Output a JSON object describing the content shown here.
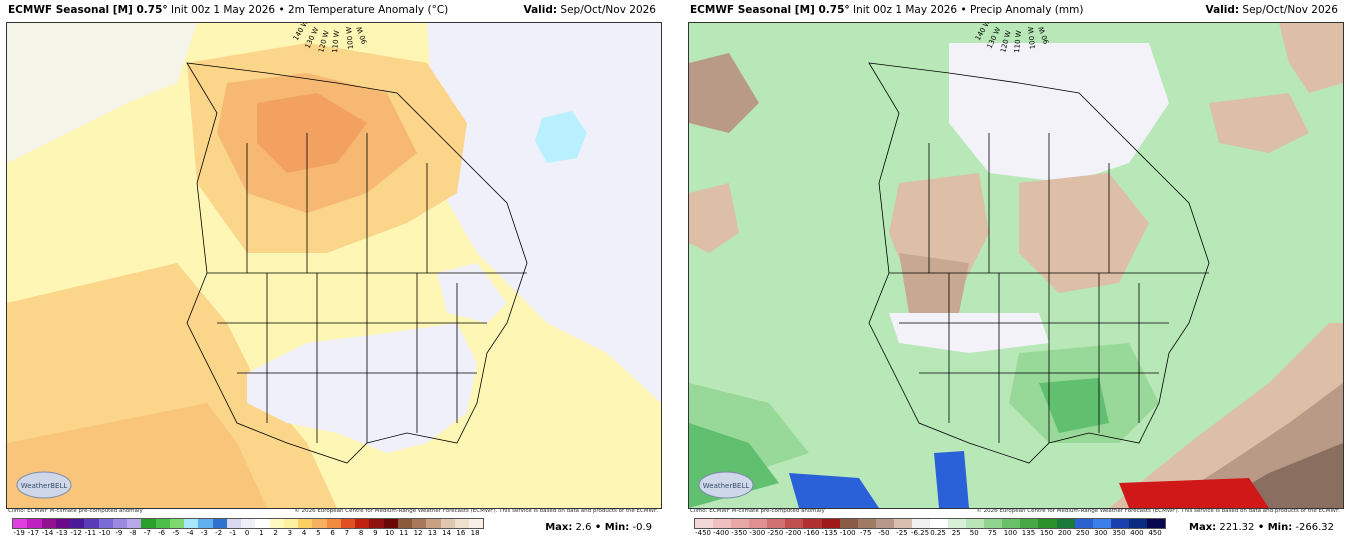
{
  "panels": [
    {
      "title_bold": "ECMWF Seasonal [M] 0.75°",
      "title_rest": " Init 00z 1 May 2026 • 2m Temperature Anomaly (°C)",
      "valid_label": "Valid:",
      "valid_value": " Sep/Oct/Nov 2026",
      "climo_note": "Climo: ECMWF M-climate pre-computed anomaly",
      "copyright": "© 2026 European Centre for Medium-Range Weather Forecasts (ECMWF). This service is based on data and products of the ECMWF.",
      "logo_text": "WeatherBELL",
      "longitude_labels": [
        "140 W",
        "130 W",
        "120 W",
        "110 W",
        "100 W",
        "90 W"
      ],
      "scale_ticks": [
        "-19",
        "-17",
        "-14",
        "-13",
        "-12",
        "-11",
        "-10",
        "-9",
        "-8",
        "-7",
        "-6",
        "-5",
        "-4",
        "-3",
        "-2",
        "-1",
        "0",
        "1",
        "2",
        "3",
        "4",
        "5",
        "6",
        "7",
        "8",
        "9",
        "10",
        "11",
        "12",
        "13",
        "14",
        "16",
        "18"
      ],
      "scale_colors": [
        "#e040e0",
        "#c020c0",
        "#901090",
        "#6a0a8a",
        "#4a1a9a",
        "#5a3ab8",
        "#7a6ad6",
        "#9a8ae0",
        "#b8a8ea",
        "#2aa02a",
        "#4ac04a",
        "#80d870",
        "#a8e8ff",
        "#60b0f0",
        "#3070d0",
        "#d8d8f0",
        "#f0f0fa",
        "#ffffff",
        "#fff8c0",
        "#fdf0a0",
        "#fbd060",
        "#f6b060",
        "#f28a40",
        "#e05020",
        "#c02010",
        "#901010",
        "#6a0808",
        "#8a5a3a",
        "#a8785a",
        "#c8a080",
        "#e0c8b0",
        "#f0e0d0",
        "#f8f0e8"
      ],
      "max_label": "Max:",
      "max_value": " 2.6",
      "min_label": " • Min:",
      "min_value": " -0.9"
    },
    {
      "title_bold": "ECMWF Seasonal [M] 0.75°",
      "title_rest": " Init 00z 1 May 2026 • Precip Anomaly (mm)",
      "valid_label": "Valid:",
      "valid_value": " Sep/Oct/Nov 2026",
      "climo_note": "Climo: ECMWF M-climate pre-computed anomaly",
      "copyright": "© 2026 European Centre for Medium-Range Weather Forecasts (ECMWF). This service is based on data and products of the ECMWF.",
      "logo_text": "WeatherBELL",
      "longitude_labels": [
        "140 W",
        "130 W",
        "120 W",
        "110 W",
        "100 W",
        "90 W"
      ],
      "scale_ticks": [
        "-450",
        "-400",
        "-350",
        "-300",
        "-250",
        "-200",
        "-160",
        "-135",
        "-100",
        "-75",
        "-50",
        "-25",
        "-6.25",
        "0.25",
        "25",
        "50",
        "75",
        "100",
        "135",
        "150",
        "200",
        "250",
        "300",
        "350",
        "400",
        "450"
      ],
      "scale_colors": [
        "#f4d8d8",
        "#f0c0c0",
        "#e8a8a8",
        "#e09090",
        "#d07070",
        "#c05050",
        "#b03030",
        "#a01818",
        "#8a5a44",
        "#a07a64",
        "#b8988a",
        "#d8c0b0",
        "#f0f0f0",
        "#ffffff",
        "#d8f0d8",
        "#b8e4b8",
        "#90d490",
        "#68c068",
        "#48a848",
        "#2a902a",
        "#1a7a3a",
        "#2a60d0",
        "#3a80e8",
        "#1a40b0",
        "#0a2a80",
        "#080850"
      ],
      "max_label": "Max:",
      "max_value": " 221.32",
      "min_label": " • Min:",
      "min_value": " -266.32"
    }
  ],
  "colors": {
    "temp_bg": "#fdf6b4",
    "temp_warm": "#fbd58a",
    "temp_warmer": "#f6b872",
    "temp_hot": "#f3a160",
    "temp_neutral": "#eff0fa",
    "temp_cool": "#b8f0ff",
    "precip_bg": "#b8e8b8",
    "precip_green": "#98d898",
    "precip_dgreen": "#60c070",
    "precip_dry": "#dcbfa6",
    "precip_drier": "#b89a86",
    "precip_driest": "#8a6e60",
    "precip_red": "#d01818",
    "precip_blue": "#2a60d8",
    "neutral": "#f2f2f8"
  }
}
